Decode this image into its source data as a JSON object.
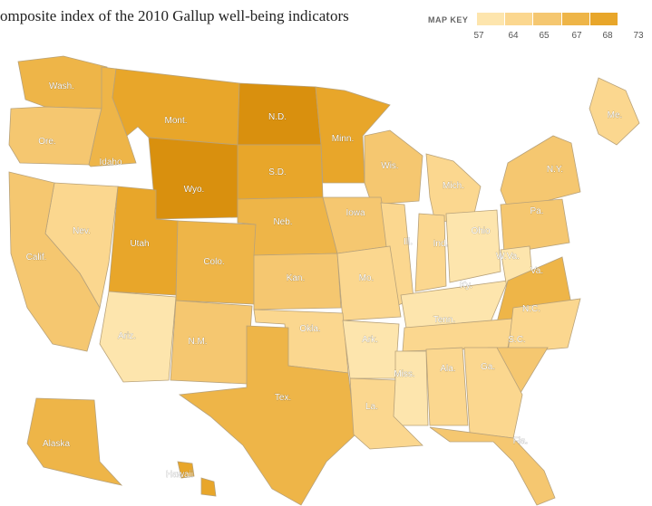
{
  "title": "omposite index of the 2010 Gallup well-being indicators",
  "map_key": {
    "label": "MAP KEY",
    "ticks": [
      "57",
      "64",
      "65",
      "67",
      "68",
      "73"
    ],
    "colors": [
      "#fde5ad",
      "#fbd78f",
      "#f5c770",
      "#eeb548",
      "#e8a62a",
      "#d9900e"
    ]
  },
  "boundary_color": "#b8a27a",
  "states": [
    {
      "abbr": "Wash.",
      "color": "#eeb548"
    },
    {
      "abbr": "Ore.",
      "color": "#f5c770"
    },
    {
      "abbr": "Idaho",
      "color": "#eeb548"
    },
    {
      "abbr": "Mont.",
      "color": "#e8a62a"
    },
    {
      "abbr": "N.D.",
      "color": "#d9900e"
    },
    {
      "abbr": "Minn.",
      "color": "#e8a62a"
    },
    {
      "abbr": "Wis.",
      "color": "#f5c770"
    },
    {
      "abbr": "Mich.",
      "color": "#fbd78f"
    },
    {
      "abbr": "N.Y.",
      "color": "#f5c770"
    },
    {
      "abbr": "Me.",
      "color": "#fbd78f"
    },
    {
      "abbr": "S.D.",
      "color": "#e8a62a"
    },
    {
      "abbr": "Wyo.",
      "color": "#d9900e"
    },
    {
      "abbr": "Nev.",
      "color": "#fbd78f"
    },
    {
      "abbr": "Calif.",
      "color": "#f5c770"
    },
    {
      "abbr": "Utah",
      "color": "#e8a62a"
    },
    {
      "abbr": "Colo.",
      "color": "#eeb548"
    },
    {
      "abbr": "Neb.",
      "color": "#eeb548"
    },
    {
      "abbr": "Iowa",
      "color": "#f5c770"
    },
    {
      "abbr": "Ill.",
      "color": "#fbd78f"
    },
    {
      "abbr": "Ind.",
      "color": "#fbd78f"
    },
    {
      "abbr": "Ohio",
      "color": "#fde5ad"
    },
    {
      "abbr": "Pa.",
      "color": "#f5c770"
    },
    {
      "abbr": "Kan.",
      "color": "#f5c770"
    },
    {
      "abbr": "Mo.",
      "color": "#fbd78f"
    },
    {
      "abbr": "Ky.",
      "color": "#fde5ad"
    },
    {
      "abbr": "W.Va.",
      "color": "#fde5ad"
    },
    {
      "abbr": "Va.",
      "color": "#eeb548"
    },
    {
      "abbr": "Ariz.",
      "color": "#fde5ad"
    },
    {
      "abbr": "N.M.",
      "color": "#f5c770"
    },
    {
      "abbr": "Okla.",
      "color": "#fbd78f"
    },
    {
      "abbr": "Ark.",
      "color": "#fde5ad"
    },
    {
      "abbr": "Tenn.",
      "color": "#fbd78f"
    },
    {
      "abbr": "N.C.",
      "color": "#fbd78f"
    },
    {
      "abbr": "S.C.",
      "color": "#f5c770"
    },
    {
      "abbr": "Miss.",
      "color": "#fde5ad"
    },
    {
      "abbr": "Ala.",
      "color": "#fbd78f"
    },
    {
      "abbr": "Ga.",
      "color": "#fbd78f"
    },
    {
      "abbr": "Tex.",
      "color": "#eeb548"
    },
    {
      "abbr": "La.",
      "color": "#fbd78f"
    },
    {
      "abbr": "Fla.",
      "color": "#f5c770"
    },
    {
      "abbr": "Alaska",
      "color": "#eeb548"
    },
    {
      "abbr": "Hawaii",
      "color": "#e8a62a"
    }
  ]
}
